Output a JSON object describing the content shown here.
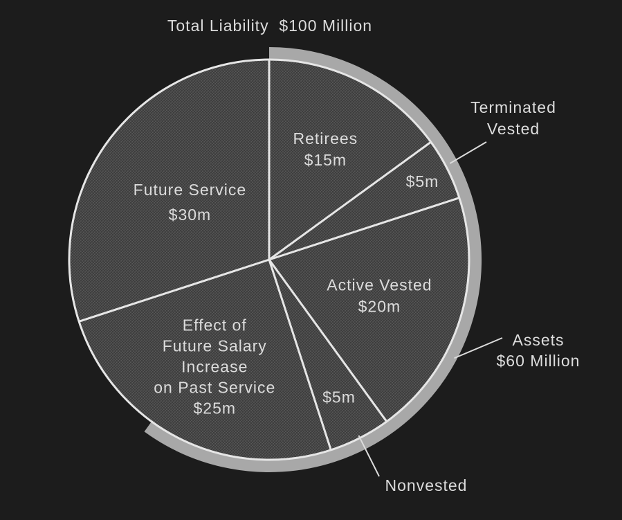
{
  "chart_data": {
    "type": "pie",
    "title": "Total Liability  $100 Million",
    "slices": [
      {
        "label": [
          "Retirees",
          "$15m"
        ],
        "value": 15
      },
      {
        "label": [
          "$5m"
        ],
        "value": 5
      },
      {
        "label": [
          "Active Vested",
          "$20m"
        ],
        "value": 20
      },
      {
        "label": [
          "$5m"
        ],
        "value": 5
      },
      {
        "label": [
          "Effect of",
          "Future Salary",
          "Increase",
          "on Past Service",
          "$25m"
        ],
        "value": 25
      },
      {
        "label": [
          "Future Service",
          "$30m"
        ],
        "value": 30
      }
    ],
    "annotations": {
      "terminated_vested": [
        "Terminated",
        "Vested"
      ],
      "assets": [
        "Assets",
        "$60 Million"
      ],
      "nonvested": "Nonvested"
    },
    "assets_value": 60,
    "colors": {
      "background": "#1c1c1c",
      "slice": "#4a4a4a",
      "border": "#e6e6e6",
      "assets_band": "#a8a8a8",
      "text": "#dcdcdc"
    }
  }
}
